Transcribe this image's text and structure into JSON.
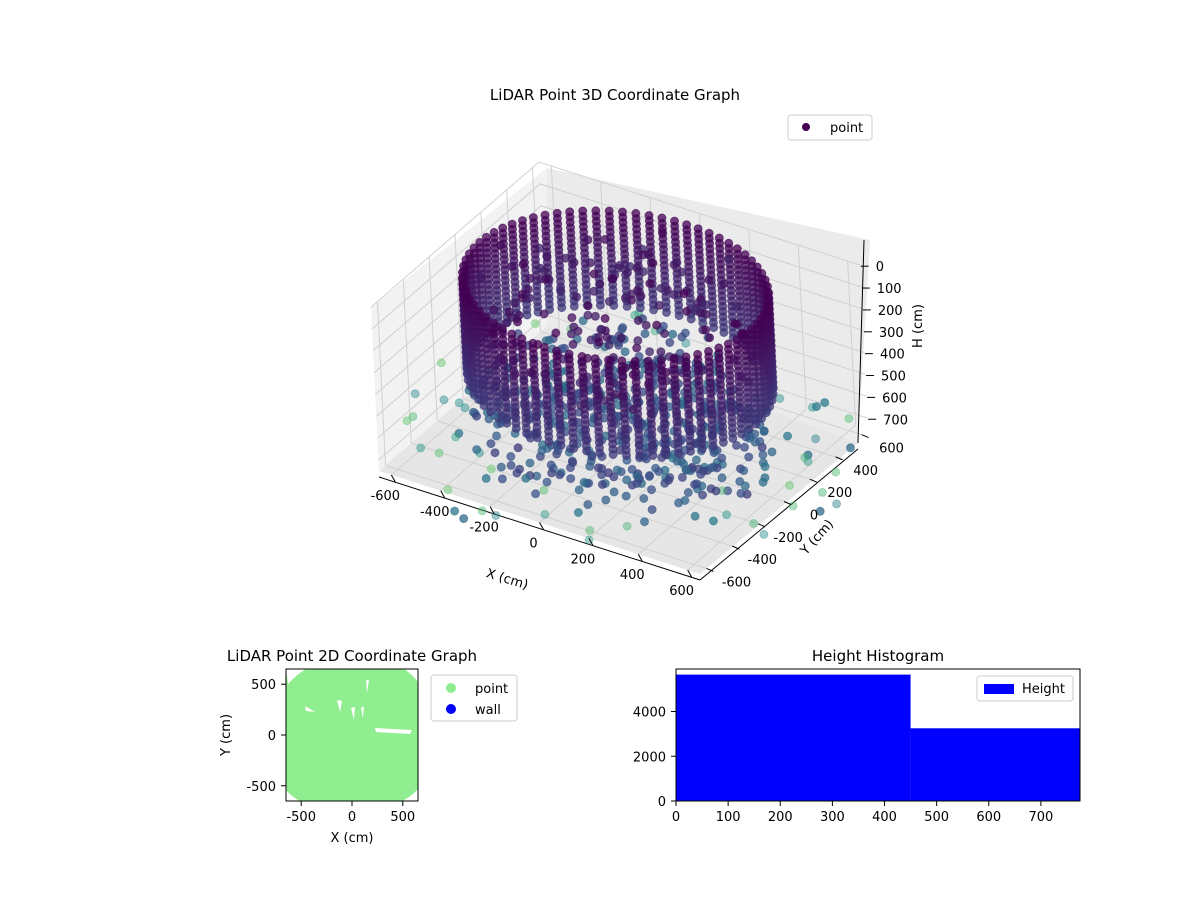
{
  "colors": {
    "point3d_start": "#440154",
    "point3d_mid": "#3b528b",
    "point3d_teal": "#21918c",
    "point3d_light": "#5ec962",
    "point2d": "#90ee90",
    "wall": "#0000ff",
    "histogram": "#0000ff"
  },
  "chart_data": [
    {
      "type": "scatter",
      "projection": "3d",
      "title": "LiDAR Point 3D Coordinate Graph",
      "xlabel": "X (cm)",
      "ylabel": "Y (cm)",
      "zlabel": "H (cm)",
      "x_ticks": [
        "-600",
        "-400",
        "-200",
        "0",
        "200",
        "400",
        "600"
      ],
      "y_ticks": [
        "-600",
        "-400",
        "-200",
        "0",
        "200",
        "400",
        "600"
      ],
      "z_ticks": [
        "0",
        "100",
        "200",
        "300",
        "400",
        "500",
        "600",
        "700"
      ],
      "xlim": [
        -650,
        650
      ],
      "ylim": [
        -650,
        650
      ],
      "zlim": [
        0,
        750
      ],
      "z_inverted": true,
      "grid": true,
      "legend": {
        "placement": "top-right",
        "entries": [
          "point"
        ]
      },
      "series": [
        {
          "name": "point",
          "shape": "cylinder",
          "radius": 550,
          "h_range": [
            0,
            450
          ],
          "colormap": "viridis"
        }
      ]
    },
    {
      "type": "scatter",
      "title": "LiDAR Point 2D Coordinate Graph",
      "xlabel": "X (cm)",
      "ylabel": "Y (cm)",
      "x_ticks": [
        "-500",
        "0",
        "500"
      ],
      "y_ticks": [
        "-500",
        "0",
        "500"
      ],
      "xlim": [
        -650,
        650
      ],
      "ylim": [
        -650,
        650
      ],
      "legend": {
        "placement": "outside-right",
        "entries": [
          "point",
          "wall"
        ]
      },
      "series": [
        {
          "name": "point",
          "extent": [
            -650,
            650
          ]
        },
        {
          "name": "wall"
        }
      ]
    },
    {
      "type": "bar",
      "title": "Height Histogram",
      "x_ticks": [
        "0",
        "100",
        "200",
        "300",
        "400",
        "500",
        "600",
        "700"
      ],
      "y_ticks": [
        "0",
        "2000",
        "4000"
      ],
      "xlim": [
        0,
        775
      ],
      "ylim": [
        0,
        5900
      ],
      "legend": {
        "placement": "top-right",
        "entries": [
          "Height"
        ]
      },
      "series": [
        {
          "name": "Height",
          "bins": [
            [
              0,
              450,
              5650
            ],
            [
              450,
              775,
              3250
            ]
          ]
        }
      ]
    }
  ]
}
